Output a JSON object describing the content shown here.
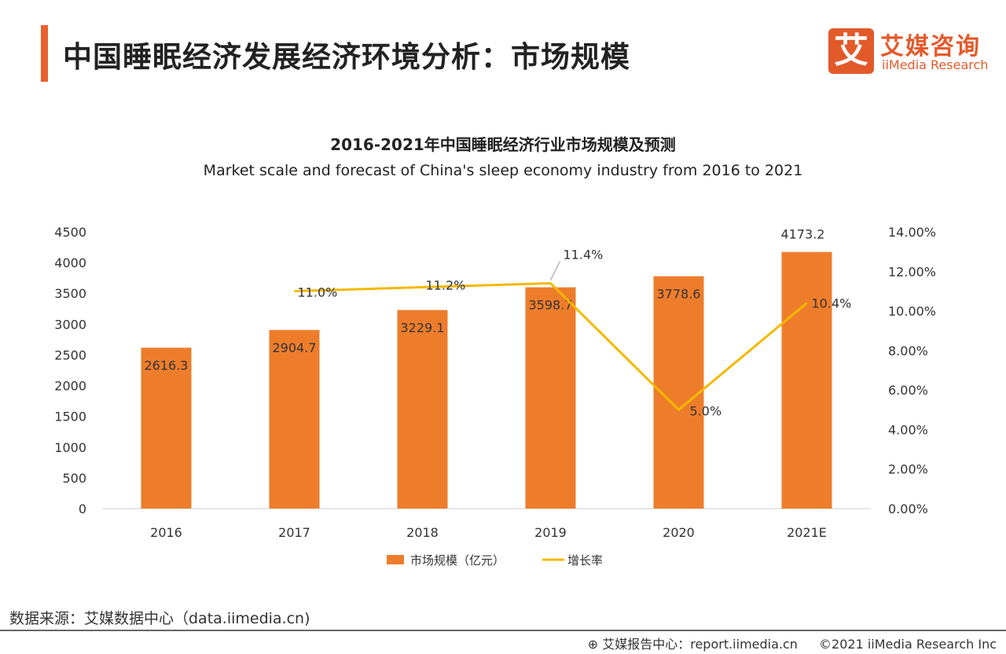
{
  "header": {
    "title": "中国睡眠经济发展经济环境分析：市场规模",
    "logo_cn": "艾媒咨询",
    "logo_en": "iiMedia Research",
    "logo_glyph": "艾",
    "accent_color": "#e8602c"
  },
  "chart_data": {
    "type": "bar+line",
    "title": "2016-2021年中国睡眠经济行业市场规模及预测",
    "subtitle": "Market scale and forecast of China's sleep economy industry from 2016 to 2021",
    "categories": [
      "2016",
      "2017",
      "2018",
      "2019",
      "2020",
      "2021E"
    ],
    "series": [
      {
        "name": "市场规模（亿元）",
        "type": "bar",
        "axis": "left",
        "color": "#ee7d2b",
        "values": [
          2616.3,
          2904.7,
          3229.1,
          3598.7,
          3778.6,
          4173.2
        ],
        "labels": [
          "2616.3",
          "2904.7",
          "3229.1",
          "3598.7",
          "3778.6",
          "4173.2"
        ]
      },
      {
        "name": "增长率",
        "type": "line",
        "axis": "right",
        "color": "#f5b800",
        "values": [
          null,
          11.0,
          11.2,
          11.4,
          5.0,
          10.4
        ],
        "labels": [
          "",
          "11.0%",
          "11.2%",
          "11.4%",
          "5.0%",
          "10.4%"
        ]
      }
    ],
    "y_left": {
      "min": 0,
      "max": 4500,
      "ticks": [
        "0",
        "500",
        "1000",
        "1500",
        "2000",
        "2500",
        "3000",
        "3500",
        "4000",
        "4500"
      ]
    },
    "y_right": {
      "min": 0,
      "max": 14,
      "ticks": [
        "0.00%",
        "2.00%",
        "4.00%",
        "6.00%",
        "8.00%",
        "10.00%",
        "12.00%",
        "14.00%"
      ]
    },
    "grid": false,
    "legend": "bottom"
  },
  "footer": {
    "source": "数据来源：艾媒数据中心（data.iimedia.cn)",
    "report": "艾媒报告中心：report.iimedia.cn",
    "copyright": "©2021  iiMedia Research  Inc"
  }
}
